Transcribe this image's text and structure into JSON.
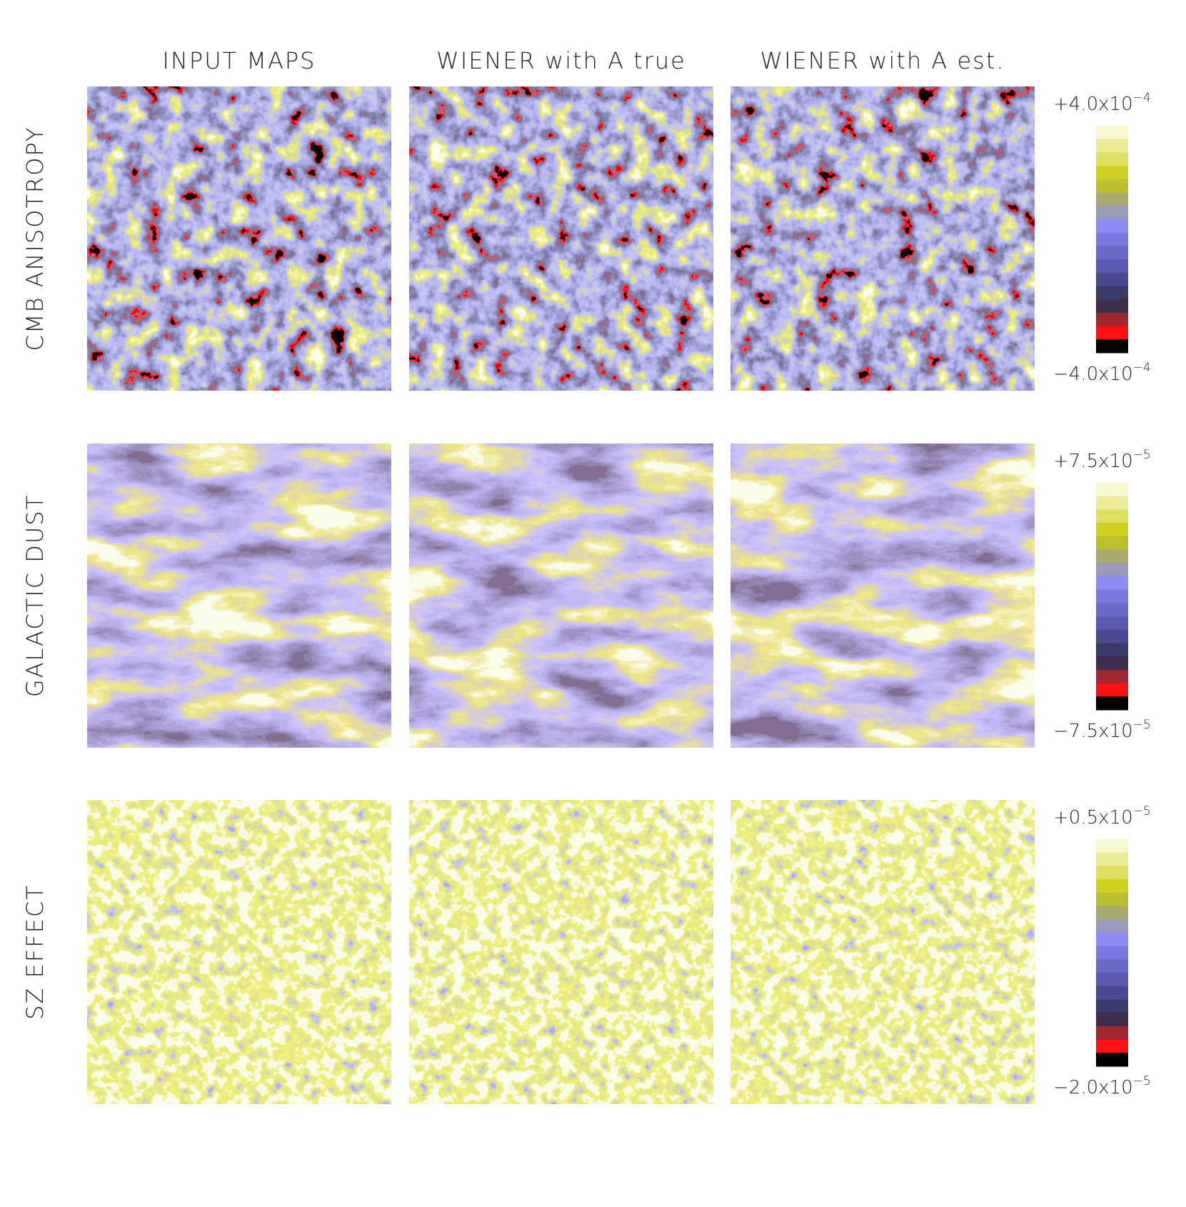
{
  "columns": [
    "INPUT MAPS",
    "WIENER with A true",
    "WIENER with A est."
  ],
  "rows": [
    {
      "label": "CMB ANISOTROPY",
      "colorbar": {
        "max": {
          "mantissa": "+4.0x10",
          "exponent": "−4"
        },
        "min": {
          "mantissa": "−4.0x10",
          "exponent": "−4"
        }
      }
    },
    {
      "label": "GALACTIC DUST",
      "colorbar": {
        "max": {
          "mantissa": "+7.5x10",
          "exponent": "−5"
        },
        "min": {
          "mantissa": "−7.5x10",
          "exponent": "−5"
        }
      }
    },
    {
      "label": "SZ EFFECT",
      "colorbar": {
        "max": {
          "mantissa": "+0.5x10",
          "exponent": "−5"
        },
        "min": {
          "mantissa": "−2.0x10",
          "exponent": "−5"
        }
      }
    }
  ]
}
